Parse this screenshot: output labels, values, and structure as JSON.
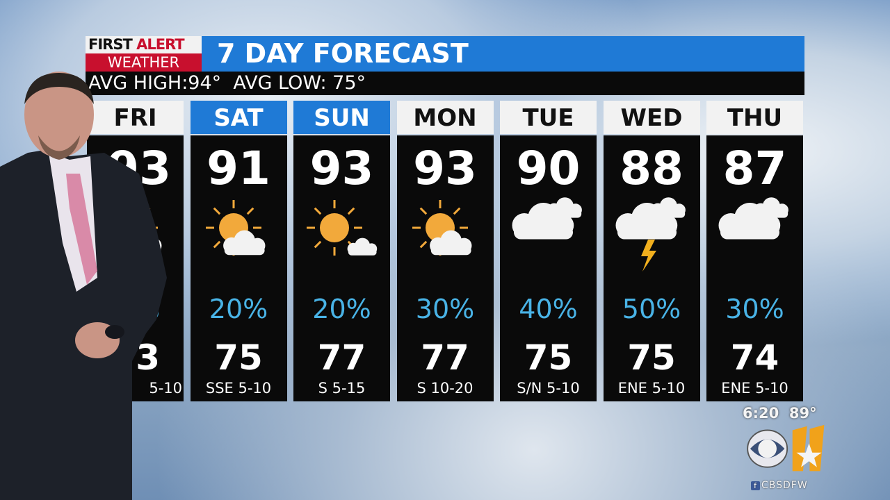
{
  "brand": {
    "first": "FIRST",
    "alert": "ALERT",
    "weather": "WEATHER"
  },
  "title": "7 DAY FORECAST",
  "averages": "AVG HIGH:94°  AVG LOW: 75°",
  "colors": {
    "blue": "#1f7ad6",
    "red": "#c8102e",
    "precip": "#49b3e6",
    "panel": "#0a0a0a"
  },
  "days": [
    {
      "day": "FRI",
      "high": "93",
      "icon": "sun-cloud-icon",
      "precip": "%",
      "low": "3",
      "wind": "5-10",
      "weekend": false
    },
    {
      "day": "SAT",
      "high": "91",
      "icon": "sun-cloud-icon",
      "precip": "20%",
      "low": "75",
      "wind": "SSE 5-10",
      "weekend": true
    },
    {
      "day": "SUN",
      "high": "93",
      "icon": "sun-small-cloud-icon",
      "precip": "20%",
      "low": "77",
      "wind": "S 5-15",
      "weekend": true
    },
    {
      "day": "MON",
      "high": "93",
      "icon": "sun-cloud-icon",
      "precip": "30%",
      "low": "77",
      "wind": "S 10-20",
      "weekend": false
    },
    {
      "day": "TUE",
      "high": "90",
      "icon": "cloud-icon",
      "precip": "40%",
      "low": "75",
      "wind": "S/N 5-10",
      "weekend": false
    },
    {
      "day": "WED",
      "high": "88",
      "icon": "thunderstorm-icon",
      "precip": "50%",
      "low": "75",
      "wind": "ENE 5-10",
      "weekend": false
    },
    {
      "day": "THU",
      "high": "87",
      "icon": "cloud-icon",
      "precip": "30%",
      "low": "74",
      "wind": "ENE 5-10",
      "weekend": false
    }
  ],
  "clock": {
    "time": "6:20",
    "temp": "89°"
  },
  "station": {
    "network": "CBS",
    "channel": "11",
    "social": "CBSDFW"
  }
}
